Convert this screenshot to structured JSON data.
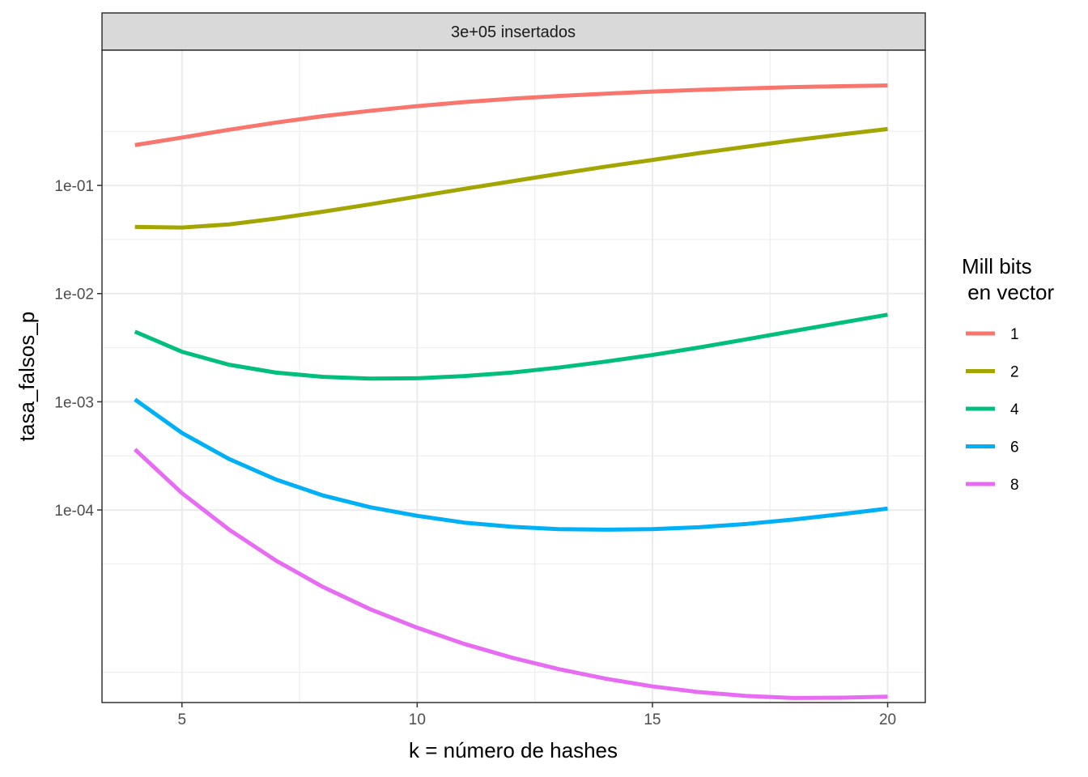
{
  "chart_data": {
    "type": "line",
    "facet_label": "3e+05 insertados",
    "xlabel": "k = número de hashes",
    "ylabel": "tasa_falsos_p",
    "xlim": [
      3.3,
      20.8
    ],
    "ylim_log10": [
      -5.78,
      0.25
    ],
    "y_scale": "log10",
    "x_ticks": [
      5,
      10,
      15,
      20
    ],
    "x_tick_labels": [
      "5",
      "10",
      "15",
      "20"
    ],
    "y_ticks": [
      0.1,
      0.01,
      0.001,
      0.0001
    ],
    "y_tick_labels": [
      "1e-01",
      "1e-02",
      "1e-03",
      "1e-04"
    ],
    "grid": true,
    "legend": {
      "title_line1": "Mill bits",
      "title_line2": " en vector",
      "placement": "right"
    },
    "x": [
      4,
      5,
      6,
      7,
      8,
      9,
      10,
      11,
      12,
      13,
      14,
      15,
      16,
      17,
      18,
      19,
      20
    ],
    "series": [
      {
        "name": "1",
        "color": "#F8766D",
        "values": [
          0.236,
          0.277,
          0.327,
          0.381,
          0.437,
          0.489,
          0.541,
          0.589,
          0.633,
          0.671,
          0.705,
          0.737,
          0.764,
          0.788,
          0.81,
          0.826,
          0.838
        ]
      },
      {
        "name": "2",
        "color": "#A3A500",
        "values": [
          0.0413,
          0.0408,
          0.0436,
          0.0494,
          0.0572,
          0.0669,
          0.0789,
          0.093,
          0.1089,
          0.1277,
          0.149,
          0.172,
          0.199,
          0.228,
          0.261,
          0.295,
          0.332
        ]
      },
      {
        "name": "4",
        "color": "#00BF7D",
        "values": [
          0.00445,
          0.0029,
          0.0022,
          0.00186,
          0.0017,
          0.00164,
          0.00165,
          0.00173,
          0.00186,
          0.00207,
          0.00235,
          0.00271,
          0.00318,
          0.00378,
          0.00451,
          0.00537,
          0.00638
        ]
      },
      {
        "name": "6",
        "color": "#00B0F6",
        "values": [
          0.00105,
          0.000515,
          0.000296,
          0.000191,
          0.000136,
          0.000106,
          8.83e-05,
          7.64e-05,
          7e-05,
          6.65e-05,
          6.58e-05,
          6.65e-05,
          6.93e-05,
          7.43e-05,
          8.16e-05,
          9.12e-05,
          0.000103
        ]
      },
      {
        "name": "8",
        "color": "#E76BF3",
        "values": [
          0.000363,
          0.000143,
          6.59e-05,
          3.4e-05,
          1.94e-05,
          1.21e-05,
          8.16e-06,
          5.78e-06,
          4.33e-06,
          3.39e-06,
          2.76e-06,
          2.34e-06,
          2.07e-06,
          1.91e-06,
          1.83e-06,
          1.84e-06,
          1.88e-06
        ]
      }
    ]
  }
}
